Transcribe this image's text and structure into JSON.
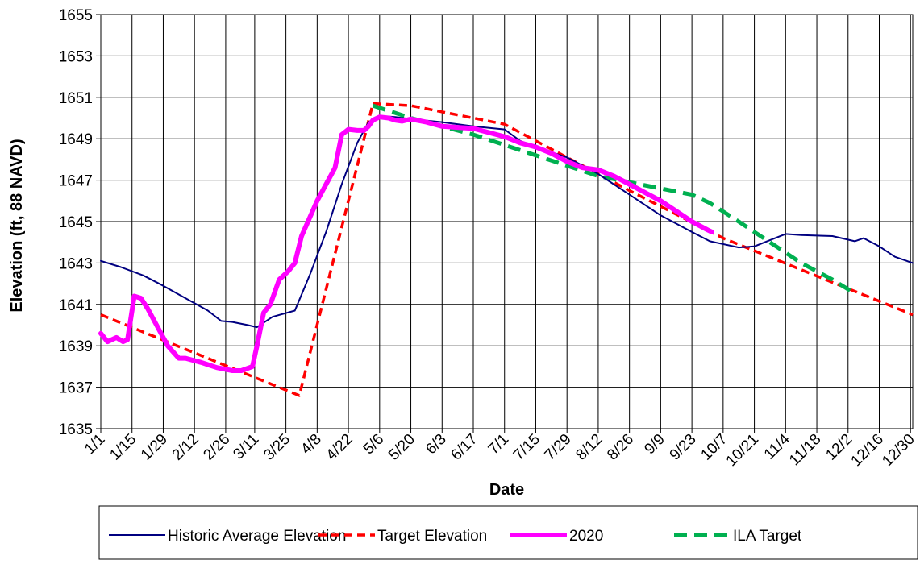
{
  "chart_data": {
    "type": "line",
    "title": "",
    "xlabel": "Date",
    "ylabel": "Elevation (ft, 88 NAVD)",
    "ylim": [
      1635,
      1655
    ],
    "y_ticks": [
      1635,
      1637,
      1639,
      1641,
      1643,
      1645,
      1647,
      1649,
      1651,
      1653,
      1655
    ],
    "y_tick_labels": [
      "1635",
      "1637",
      "1639",
      "1641",
      "1643",
      "1645",
      "1647",
      "1649",
      "1651",
      "1653",
      "1655"
    ],
    "x_range": [
      "1/1",
      "12/31"
    ],
    "x_ticks": [
      "1/1",
      "1/15",
      "1/29",
      "2/12",
      "2/26",
      "3/11",
      "3/25",
      "4/8",
      "4/22",
      "5/6",
      "5/20",
      "6/3",
      "6/17",
      "7/1",
      "7/15",
      "7/29",
      "8/12",
      "8/26",
      "9/9",
      "9/23",
      "10/7",
      "10/21",
      "11/4",
      "11/18",
      "12/2",
      "12/16",
      "12/30"
    ],
    "grid": true,
    "legend_position": "bottom",
    "series": [
      {
        "name": "Historic Average Elevation",
        "color": "#000080",
        "style": "solid",
        "x": [
          "1/1",
          "1/10",
          "1/20",
          "1/29",
          "2/8",
          "2/18",
          "2/24",
          "3/1",
          "3/8",
          "3/12",
          "3/19",
          "3/29",
          "4/5",
          "4/12",
          "4/19",
          "4/26",
          "5/1",
          "5/6",
          "5/13",
          "5/20",
          "6/3",
          "6/17",
          "7/1",
          "7/8",
          "7/15",
          "7/29",
          "8/12",
          "8/26",
          "9/9",
          "9/23",
          "10/1",
          "10/14",
          "10/21",
          "10/28",
          "11/4",
          "11/11",
          "11/25",
          "12/5",
          "12/9",
          "12/16",
          "12/23",
          "12/31"
        ],
        "y": [
          1643.1,
          1642.8,
          1642.4,
          1641.9,
          1641.3,
          1640.7,
          1640.2,
          1640.15,
          1640.0,
          1639.9,
          1640.4,
          1640.7,
          1642.5,
          1644.5,
          1646.8,
          1648.8,
          1649.8,
          1650.1,
          1650.05,
          1649.95,
          1649.8,
          1649.6,
          1649.45,
          1648.9,
          1648.6,
          1648.1,
          1647.3,
          1646.3,
          1645.3,
          1644.5,
          1644.05,
          1643.75,
          1643.8,
          1644.1,
          1644.4,
          1644.35,
          1644.3,
          1644.05,
          1644.2,
          1643.8,
          1643.3,
          1643.0
        ]
      },
      {
        "name": "Target Elevation",
        "color": "#ff0000",
        "style": "dashed",
        "x": [
          "1/1",
          "3/31",
          "5/3",
          "5/20",
          "7/1",
          "8/26",
          "10/7",
          "12/31"
        ],
        "y": [
          1640.5,
          1636.6,
          1650.7,
          1650.6,
          1649.7,
          1646.5,
          1644.2,
          1640.5
        ]
      },
      {
        "name": "2020",
        "color": "#ff00ff",
        "style": "solid",
        "x": [
          "1/1",
          "1/4",
          "1/8",
          "1/11",
          "1/13",
          "1/16",
          "1/19",
          "1/22",
          "1/26",
          "1/31",
          "2/5",
          "2/8",
          "2/15",
          "2/22",
          "3/1",
          "3/5",
          "3/10",
          "3/12",
          "3/15",
          "3/18",
          "3/22",
          "3/26",
          "3/29",
          "4/1",
          "4/8",
          "4/12",
          "4/16",
          "4/19",
          "4/22",
          "4/26",
          "4/29",
          "5/1",
          "5/3",
          "5/6",
          "5/10",
          "5/13",
          "5/16",
          "5/20",
          "5/27",
          "6/3",
          "6/10",
          "6/17",
          "6/24",
          "7/1",
          "7/8",
          "7/15",
          "7/22",
          "7/29",
          "8/5",
          "8/12",
          "8/19",
          "8/26",
          "9/2",
          "9/9",
          "9/16",
          "9/23",
          "9/30",
          "10/2"
        ],
        "y": [
          1639.6,
          1639.2,
          1639.4,
          1639.2,
          1639.3,
          1641.4,
          1641.3,
          1640.8,
          1640.0,
          1639.0,
          1638.4,
          1638.4,
          1638.2,
          1637.95,
          1637.8,
          1637.8,
          1638.0,
          1639.0,
          1640.6,
          1641.0,
          1642.2,
          1642.6,
          1643.0,
          1644.3,
          1646.0,
          1646.8,
          1647.6,
          1649.2,
          1649.45,
          1649.4,
          1649.4,
          1649.6,
          1649.9,
          1650.05,
          1650.0,
          1649.9,
          1649.85,
          1649.95,
          1649.8,
          1649.6,
          1649.55,
          1649.5,
          1649.3,
          1649.1,
          1648.8,
          1648.6,
          1648.3,
          1647.9,
          1647.6,
          1647.5,
          1647.2,
          1646.8,
          1646.4,
          1646.0,
          1645.5,
          1645.0,
          1644.6,
          1644.5
        ]
      },
      {
        "name": "ILA Target",
        "color": "#00b050",
        "style": "dashed",
        "x": [
          "5/3",
          "5/20",
          "6/17",
          "7/15",
          "8/12",
          "8/26",
          "9/9",
          "9/23",
          "10/1",
          "10/14",
          "10/28",
          "11/11",
          "11/25",
          "12/4"
        ],
        "y": [
          1650.6,
          1650.0,
          1649.2,
          1648.2,
          1647.2,
          1646.9,
          1646.6,
          1646.3,
          1645.9,
          1645.0,
          1644.0,
          1643.0,
          1642.2,
          1641.6
        ]
      }
    ]
  }
}
